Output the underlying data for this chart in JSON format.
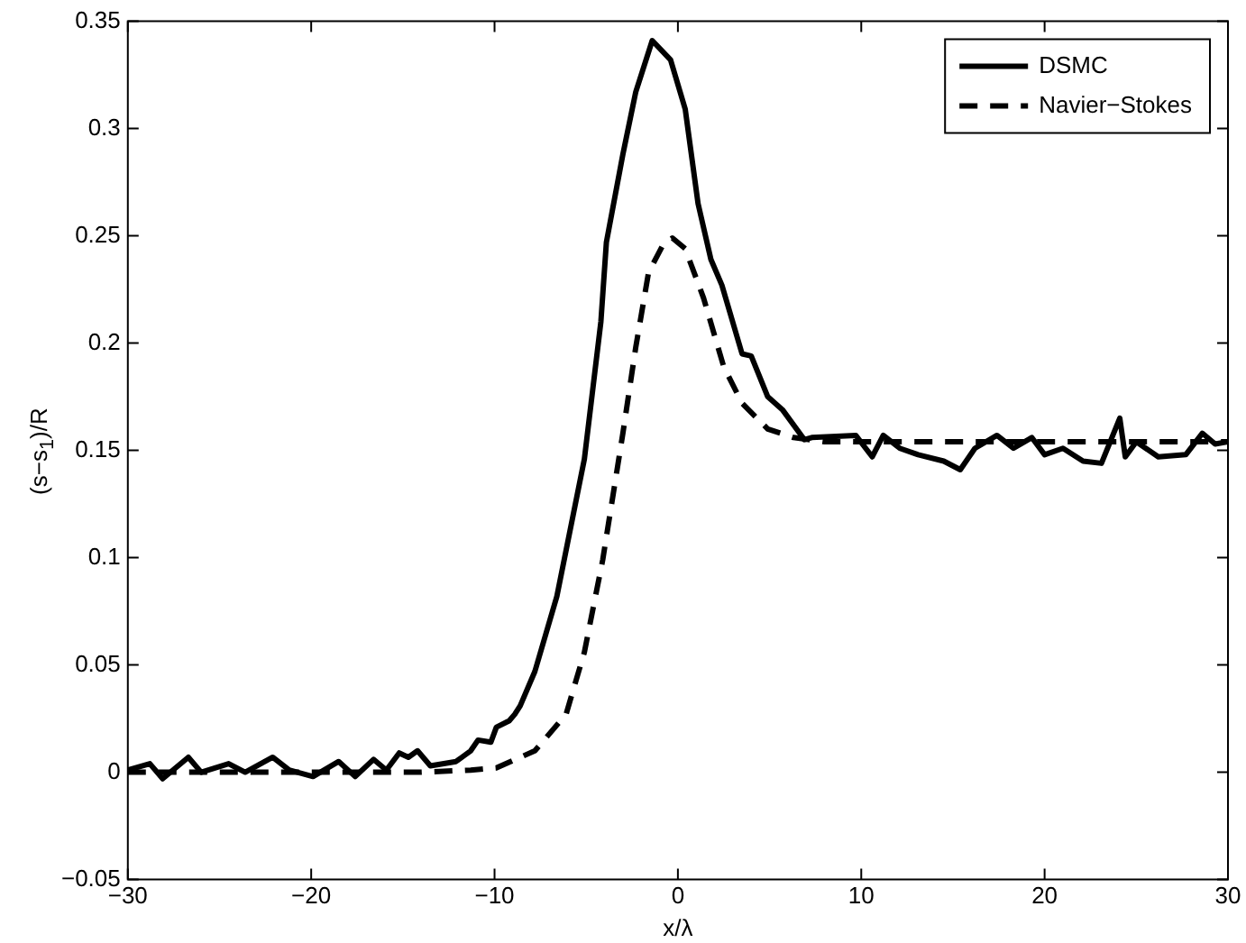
{
  "chart_data": {
    "type": "line",
    "xlabel": "x/λ",
    "ylabel": "(s−s$_{1}$)/R",
    "xlim": [
      -30,
      30
    ],
    "xticks": [
      -30,
      -20,
      -10,
      0,
      10,
      20,
      30
    ],
    "ylim": [
      -0.05,
      0.35
    ],
    "yticks": [
      -0.05,
      0,
      0.05,
      0.1,
      0.15,
      0.2,
      0.25,
      0.3,
      0.35
    ],
    "grid": false,
    "legend": "top right",
    "marker": "none",
    "series": [
      {
        "name": "DSMC",
        "color": "#000000",
        "line_style": "solid",
        "x": [
          -30,
          -28.8,
          -28.1,
          -26.7,
          -26.0,
          -24.5,
          -23.6,
          -22.1,
          -21.2,
          -19.9,
          -18.5,
          -17.6,
          -16.6,
          -15.9,
          -15.2,
          -14.7,
          -14.2,
          -13.5,
          -12.1,
          -11.3,
          -10.9,
          -10.2,
          -9.9,
          -9.2,
          -8.9,
          -8.6,
          -7.8,
          -6.6,
          -5.1,
          -4.2,
          -3.9,
          -3.0,
          -2.3,
          -1.4,
          -0.4,
          0.4,
          1.1,
          1.8,
          2.4,
          3.5,
          4.0,
          4.9,
          5.7,
          6.9,
          7.3,
          9.7,
          10.6,
          11.2,
          12.1,
          13.1,
          14.5,
          15.4,
          16.2,
          17.4,
          18.3,
          19.3,
          20.0,
          21.0,
          22.1,
          23.1,
          24.1,
          24.4,
          25.0,
          26.2,
          27.7,
          28.6,
          29.3,
          30
        ],
        "values": [
          0.001,
          0.004,
          -0.003,
          0.007,
          0.0,
          0.004,
          0.0,
          0.007,
          0.001,
          -0.002,
          0.005,
          -0.002,
          0.006,
          0.001,
          0.009,
          0.007,
          0.01,
          0.003,
          0.005,
          0.01,
          0.015,
          0.014,
          0.021,
          0.024,
          0.027,
          0.031,
          0.047,
          0.082,
          0.146,
          0.21,
          0.247,
          0.288,
          0.317,
          0.341,
          0.332,
          0.309,
          0.265,
          0.239,
          0.227,
          0.195,
          0.194,
          0.175,
          0.169,
          0.155,
          0.156,
          0.157,
          0.147,
          0.157,
          0.151,
          0.148,
          0.145,
          0.141,
          0.151,
          0.157,
          0.151,
          0.156,
          0.148,
          0.151,
          0.145,
          0.144,
          0.165,
          0.147,
          0.154,
          0.147,
          0.148,
          0.158,
          0.153,
          0.154
        ]
      },
      {
        "name": "Navier−Stokes",
        "color": "#000000",
        "line_style": "dashed",
        "x": [
          -30,
          -14,
          -11.3,
          -9.9,
          -7.8,
          -6.1,
          -5.1,
          -4.1,
          -3.0,
          -2.3,
          -1.6,
          -0.8,
          -0.3,
          0.4,
          1.4,
          2.5,
          3.5,
          4.9,
          6.3,
          8.0,
          30
        ],
        "values": [
          0,
          0,
          0.001,
          0.002,
          0.01,
          0.027,
          0.056,
          0.099,
          0.158,
          0.198,
          0.233,
          0.246,
          0.249,
          0.244,
          0.221,
          0.189,
          0.172,
          0.16,
          0.156,
          0.154,
          0.154
        ]
      }
    ]
  }
}
